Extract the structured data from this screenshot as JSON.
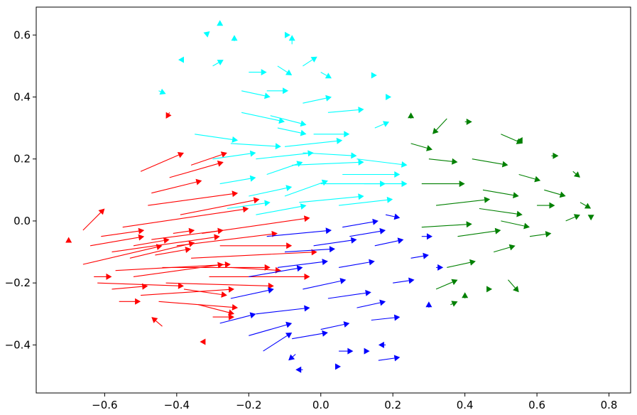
{
  "chart_data": {
    "type": "quiver",
    "title": "",
    "xlabel": "",
    "ylabel": "",
    "xlim": [
      -0.79,
      0.86
    ],
    "ylim": [
      -0.555,
      0.69
    ],
    "grid": false,
    "xticks": [
      -0.6,
      -0.4,
      -0.2,
      0.0,
      0.2,
      0.4,
      0.6,
      0.8
    ],
    "yticks": [
      -0.4,
      -0.2,
      0.0,
      0.2,
      0.4,
      0.6
    ],
    "xtick_labels": [
      "−0.6",
      "−0.4",
      "−0.2",
      "0.0",
      "0.2",
      "0.4",
      "0.6",
      "0.8"
    ],
    "ytick_labels": [
      "−0.4",
      "−0.2",
      "0.0",
      "0.2",
      "0.4",
      "0.6"
    ],
    "series": [
      {
        "color": "#ff0000",
        "arrows": [
          {
            "x": -0.66,
            "y": -0.14,
            "u": 0.22,
            "v": 0.06
          },
          {
            "x": -0.58,
            "y": -0.1,
            "u": 0.3,
            "v": 0.05
          },
          {
            "x": -0.52,
            "y": -0.18,
            "u": 0.25,
            "v": 0.04
          },
          {
            "x": -0.47,
            "y": -0.06,
            "u": 0.2,
            "v": 0.03
          },
          {
            "x": -0.62,
            "y": -0.2,
            "u": 0.24,
            "v": -0.01
          },
          {
            "x": -0.55,
            "y": -0.02,
            "u": 0.35,
            "v": 0.06
          },
          {
            "x": -0.44,
            "y": -0.15,
            "u": 0.3,
            "v": 0.0
          },
          {
            "x": -0.5,
            "y": -0.24,
            "u": 0.26,
            "v": 0.02
          },
          {
            "x": -0.64,
            "y": -0.08,
            "u": 0.15,
            "v": 0.03
          },
          {
            "x": -0.4,
            "y": -0.08,
            "u": 0.28,
            "v": 0.04
          },
          {
            "x": -0.57,
            "y": -0.16,
            "u": 0.32,
            "v": 0.02
          },
          {
            "x": -0.45,
            "y": -0.26,
            "u": 0.22,
            "v": -0.02
          },
          {
            "x": -0.36,
            "y": -0.12,
            "u": 0.35,
            "v": 0.02
          },
          {
            "x": -0.53,
            "y": -0.12,
            "u": 0.18,
            "v": 0.05
          },
          {
            "x": -0.61,
            "y": -0.05,
            "u": 0.12,
            "v": 0.02
          },
          {
            "x": -0.43,
            "y": -0.2,
            "u": 0.3,
            "v": -0.01
          },
          {
            "x": -0.48,
            "y": 0.05,
            "u": 0.25,
            "v": 0.04
          },
          {
            "x": -0.39,
            "y": 0.02,
            "u": 0.22,
            "v": 0.05
          },
          {
            "x": -0.5,
            "y": 0.16,
            "u": 0.12,
            "v": 0.06
          },
          {
            "x": -0.42,
            "y": 0.14,
            "u": 0.15,
            "v": 0.05
          },
          {
            "x": -0.36,
            "y": 0.18,
            "u": 0.1,
            "v": 0.04
          },
          {
            "x": -0.47,
            "y": 0.09,
            "u": 0.14,
            "v": 0.04
          },
          {
            "x": -0.66,
            "y": -0.03,
            "u": 0.06,
            "v": 0.07
          },
          {
            "x": -0.7,
            "y": -0.07,
            "u": 0.0,
            "v": 0.01
          },
          {
            "x": -0.33,
            "y": -0.04,
            "u": 0.3,
            "v": 0.05
          },
          {
            "x": -0.31,
            "y": -0.18,
            "u": 0.28,
            "v": 0.0
          },
          {
            "x": -0.58,
            "y": -0.22,
            "u": 0.1,
            "v": 0.01
          },
          {
            "x": -0.52,
            "y": -0.08,
            "u": 0.1,
            "v": 0.02
          },
          {
            "x": -0.46,
            "y": -0.11,
            "u": 0.1,
            "v": 0.02
          },
          {
            "x": -0.38,
            "y": -0.22,
            "u": 0.12,
            "v": -0.02
          },
          {
            "x": -0.34,
            "y": -0.27,
            "u": 0.1,
            "v": -0.03
          },
          {
            "x": -0.3,
            "y": -0.31,
            "u": 0.06,
            "v": 0.0
          },
          {
            "x": -0.44,
            "y": -0.34,
            "u": -0.03,
            "v": 0.03
          },
          {
            "x": -0.42,
            "y": 0.35,
            "u": -0.01,
            "v": -0.02
          },
          {
            "x": -0.32,
            "y": -0.39,
            "u": -0.01,
            "v": 0.0
          },
          {
            "x": -0.28,
            "y": -0.08,
            "u": 0.2,
            "v": 0.0
          },
          {
            "x": -0.25,
            "y": -0.15,
            "u": 0.14,
            "v": -0.01
          },
          {
            "x": -0.63,
            "y": -0.18,
            "u": 0.05,
            "v": 0.0
          },
          {
            "x": -0.56,
            "y": -0.26,
            "u": 0.06,
            "v": 0.0
          },
          {
            "x": -0.41,
            "y": -0.04,
            "u": 0.06,
            "v": 0.01
          }
        ]
      },
      {
        "color": "#00ffff",
        "arrows": [
          {
            "x": -0.3,
            "y": 0.2,
            "u": 0.12,
            "v": 0.02
          },
          {
            "x": -0.15,
            "y": 0.15,
            "u": 0.1,
            "v": 0.04
          },
          {
            "x": -0.05,
            "y": 0.22,
            "u": 0.15,
            "v": -0.01
          },
          {
            "x": -0.2,
            "y": 0.08,
            "u": 0.12,
            "v": 0.03
          },
          {
            "x": 0.0,
            "y": 0.12,
            "u": 0.18,
            "v": 0.0
          },
          {
            "x": -0.12,
            "y": 0.3,
            "u": 0.08,
            "v": -0.02
          },
          {
            "x": 0.05,
            "y": 0.05,
            "u": 0.15,
            "v": 0.02
          },
          {
            "x": -0.25,
            "y": 0.25,
            "u": 0.14,
            "v": -0.01
          },
          {
            "x": -0.08,
            "y": 0.18,
            "u": 0.2,
            "v": 0.01
          },
          {
            "x": -0.18,
            "y": 0.02,
            "u": 0.14,
            "v": 0.03
          },
          {
            "x": 0.1,
            "y": 0.2,
            "u": 0.14,
            "v": -0.02
          },
          {
            "x": -0.28,
            "y": 0.12,
            "u": 0.1,
            "v": 0.02
          },
          {
            "x": -0.1,
            "y": 0.08,
            "u": 0.12,
            "v": 0.05
          },
          {
            "x": -0.02,
            "y": 0.28,
            "u": 0.1,
            "v": 0.0
          },
          {
            "x": -0.22,
            "y": 0.35,
            "u": 0.12,
            "v": -0.03
          },
          {
            "x": -0.15,
            "y": 0.42,
            "u": 0.06,
            "v": 0.0
          },
          {
            "x": -0.05,
            "y": 0.38,
            "u": 0.08,
            "v": 0.02
          },
          {
            "x": -0.3,
            "y": 0.5,
            "u": 0.03,
            "v": 0.02
          },
          {
            "x": -0.2,
            "y": 0.48,
            "u": 0.05,
            "v": 0.0
          },
          {
            "x": -0.24,
            "y": 0.58,
            "u": 0.0,
            "v": 0.02
          },
          {
            "x": -0.32,
            "y": 0.6,
            "u": 0.01,
            "v": 0.01
          },
          {
            "x": -0.28,
            "y": 0.63,
            "u": 0.0,
            "v": 0.01
          },
          {
            "x": -0.1,
            "y": 0.6,
            "u": 0.0,
            "v": 0.0
          },
          {
            "x": -0.08,
            "y": 0.57,
            "u": 0.0,
            "v": 0.03
          },
          {
            "x": -0.12,
            "y": 0.5,
            "u": 0.04,
            "v": -0.03
          },
          {
            "x": -0.05,
            "y": 0.5,
            "u": 0.04,
            "v": 0.03
          },
          {
            "x": 0.0,
            "y": 0.48,
            "u": 0.03,
            "v": -0.02
          },
          {
            "x": -0.45,
            "y": 0.42,
            "u": 0.02,
            "v": -0.01
          },
          {
            "x": -0.38,
            "y": 0.52,
            "u": -0.01,
            "v": 0.0
          },
          {
            "x": 0.12,
            "y": 0.12,
            "u": 0.12,
            "v": 0.0
          },
          {
            "x": -0.1,
            "y": 0.24,
            "u": 0.16,
            "v": 0.02
          },
          {
            "x": -0.35,
            "y": 0.28,
            "u": 0.12,
            "v": -0.02
          },
          {
            "x": 0.02,
            "y": 0.35,
            "u": 0.1,
            "v": 0.01
          },
          {
            "x": 0.15,
            "y": 0.3,
            "u": 0.04,
            "v": 0.02
          },
          {
            "x": 0.18,
            "y": 0.4,
            "u": 0.0,
            "v": 0.0
          },
          {
            "x": 0.14,
            "y": 0.47,
            "u": 0.0,
            "v": 0.0
          },
          {
            "x": -0.18,
            "y": 0.2,
            "u": 0.16,
            "v": 0.02
          },
          {
            "x": -0.06,
            "y": 0.06,
            "u": 0.18,
            "v": 0.02
          },
          {
            "x": 0.06,
            "y": 0.15,
            "u": 0.16,
            "v": 0.0
          },
          {
            "x": -0.26,
            "y": 0.04,
            "u": 0.12,
            "v": 0.02
          },
          {
            "x": -0.14,
            "y": 0.34,
            "u": 0.1,
            "v": -0.03
          },
          {
            "x": -0.22,
            "y": 0.42,
            "u": 0.08,
            "v": -0.02
          }
        ]
      },
      {
        "color": "#0000ff",
        "arrows": [
          {
            "x": 0.05,
            "y": -0.15,
            "u": 0.1,
            "v": 0.02
          },
          {
            "x": -0.05,
            "y": -0.22,
            "u": 0.12,
            "v": 0.03
          },
          {
            "x": 0.15,
            "y": -0.08,
            "u": 0.08,
            "v": 0.02
          },
          {
            "x": -0.1,
            "y": -0.1,
            "u": 0.14,
            "v": 0.01
          },
          {
            "x": 0.1,
            "y": -0.28,
            "u": 0.08,
            "v": 0.02
          },
          {
            "x": -0.18,
            "y": -0.3,
            "u": 0.15,
            "v": 0.02
          },
          {
            "x": 0.0,
            "y": -0.35,
            "u": 0.08,
            "v": 0.02
          },
          {
            "x": 0.2,
            "y": -0.2,
            "u": 0.06,
            "v": 0.01
          },
          {
            "x": -0.2,
            "y": -0.18,
            "u": 0.15,
            "v": 0.03
          },
          {
            "x": 0.08,
            "y": -0.05,
            "u": 0.1,
            "v": 0.02
          },
          {
            "x": -0.15,
            "y": -0.05,
            "u": 0.18,
            "v": 0.02
          },
          {
            "x": 0.25,
            "y": -0.12,
            "u": 0.05,
            "v": 0.01
          },
          {
            "x": -0.25,
            "y": -0.25,
            "u": 0.12,
            "v": 0.03
          },
          {
            "x": -0.08,
            "y": -0.38,
            "u": 0.1,
            "v": 0.02
          },
          {
            "x": 0.05,
            "y": -0.42,
            "u": 0.04,
            "v": 0.0
          },
          {
            "x": 0.12,
            "y": -0.42,
            "u": 0.0,
            "v": 0.0
          },
          {
            "x": 0.18,
            "y": -0.4,
            "u": -0.02,
            "v": 0.0
          },
          {
            "x": -0.16,
            "y": -0.42,
            "u": 0.08,
            "v": 0.06
          },
          {
            "x": -0.28,
            "y": -0.33,
            "u": 0.1,
            "v": 0.03
          },
          {
            "x": -0.05,
            "y": -0.48,
            "u": -0.02,
            "v": 0.0
          },
          {
            "x": 0.04,
            "y": -0.47,
            "u": 0.0,
            "v": 0.0
          },
          {
            "x": -0.07,
            "y": -0.43,
            "u": -0.02,
            "v": -0.02
          },
          {
            "x": 0.3,
            "y": -0.28,
            "u": 0.0,
            "v": 0.02
          },
          {
            "x": 0.32,
            "y": -0.15,
            "u": 0.02,
            "v": 0.0
          },
          {
            "x": 0.28,
            "y": -0.05,
            "u": 0.03,
            "v": 0.0
          },
          {
            "x": 0.18,
            "y": 0.02,
            "u": 0.04,
            "v": -0.01
          },
          {
            "x": -0.12,
            "y": -0.15,
            "u": 0.14,
            "v": 0.02
          },
          {
            "x": 0.02,
            "y": -0.25,
            "u": 0.12,
            "v": 0.02
          },
          {
            "x": -0.02,
            "y": -0.08,
            "u": 0.12,
            "v": 0.02
          },
          {
            "x": 0.14,
            "y": -0.32,
            "u": 0.08,
            "v": 0.01
          },
          {
            "x": 0.16,
            "y": -0.45,
            "u": 0.06,
            "v": 0.01
          },
          {
            "x": 0.06,
            "y": -0.02,
            "u": 0.1,
            "v": 0.02
          },
          {
            "x": -0.2,
            "y": -0.37,
            "u": 0.12,
            "v": 0.04
          }
        ]
      },
      {
        "color": "#008000",
        "arrows": [
          {
            "x": 0.25,
            "y": 0.25,
            "u": 0.06,
            "v": -0.02
          },
          {
            "x": 0.32,
            "y": 0.05,
            "u": 0.15,
            "v": 0.02
          },
          {
            "x": 0.45,
            "y": 0.1,
            "u": 0.1,
            "v": -0.02
          },
          {
            "x": 0.38,
            "y": -0.05,
            "u": 0.12,
            "v": 0.02
          },
          {
            "x": 0.5,
            "y": 0.0,
            "u": 0.08,
            "v": -0.02
          },
          {
            "x": 0.28,
            "y": 0.12,
            "u": 0.12,
            "v": 0.0
          },
          {
            "x": 0.55,
            "y": 0.15,
            "u": 0.06,
            "v": -0.02
          },
          {
            "x": 0.42,
            "y": 0.2,
            "u": 0.1,
            "v": -0.02
          },
          {
            "x": 0.35,
            "y": -0.15,
            "u": 0.08,
            "v": 0.02
          },
          {
            "x": 0.6,
            "y": 0.05,
            "u": 0.05,
            "v": 0.0
          },
          {
            "x": 0.48,
            "y": -0.1,
            "u": 0.06,
            "v": 0.02
          },
          {
            "x": 0.3,
            "y": 0.2,
            "u": 0.08,
            "v": -0.01
          },
          {
            "x": 0.68,
            "y": 0.0,
            "u": 0.04,
            "v": 0.02
          },
          {
            "x": 0.72,
            "y": 0.06,
            "u": 0.03,
            "v": -0.02
          },
          {
            "x": 0.75,
            "y": 0.02,
            "u": 0.0,
            "v": -0.01
          },
          {
            "x": 0.7,
            "y": 0.16,
            "u": 0.02,
            "v": -0.02
          },
          {
            "x": 0.64,
            "y": 0.21,
            "u": 0.02,
            "v": 0.0
          },
          {
            "x": 0.5,
            "y": 0.28,
            "u": 0.06,
            "v": -0.03
          },
          {
            "x": 0.35,
            "y": 0.33,
            "u": -0.04,
            "v": -0.05
          },
          {
            "x": 0.4,
            "y": 0.32,
            "u": 0.02,
            "v": 0.0
          },
          {
            "x": 0.25,
            "y": 0.33,
            "u": 0.0,
            "v": 0.02
          },
          {
            "x": 0.52,
            "y": -0.19,
            "u": 0.03,
            "v": -0.04
          },
          {
            "x": 0.4,
            "y": -0.25,
            "u": 0.0,
            "v": 0.02
          },
          {
            "x": 0.46,
            "y": -0.22,
            "u": 0.0,
            "v": 0.0
          },
          {
            "x": 0.36,
            "y": -0.27,
            "u": 0.02,
            "v": 0.01
          },
          {
            "x": 0.56,
            "y": 0.26,
            "u": -0.01,
            "v": 0.0
          },
          {
            "x": 0.28,
            "y": -0.02,
            "u": 0.14,
            "v": 0.01
          },
          {
            "x": 0.44,
            "y": 0.04,
            "u": 0.12,
            "v": -0.02
          },
          {
            "x": 0.58,
            "y": -0.05,
            "u": 0.06,
            "v": 0.01
          },
          {
            "x": 0.32,
            "y": -0.22,
            "u": 0.06,
            "v": 0.03
          },
          {
            "x": 0.62,
            "y": 0.1,
            "u": 0.06,
            "v": -0.02
          }
        ]
      }
    ]
  }
}
